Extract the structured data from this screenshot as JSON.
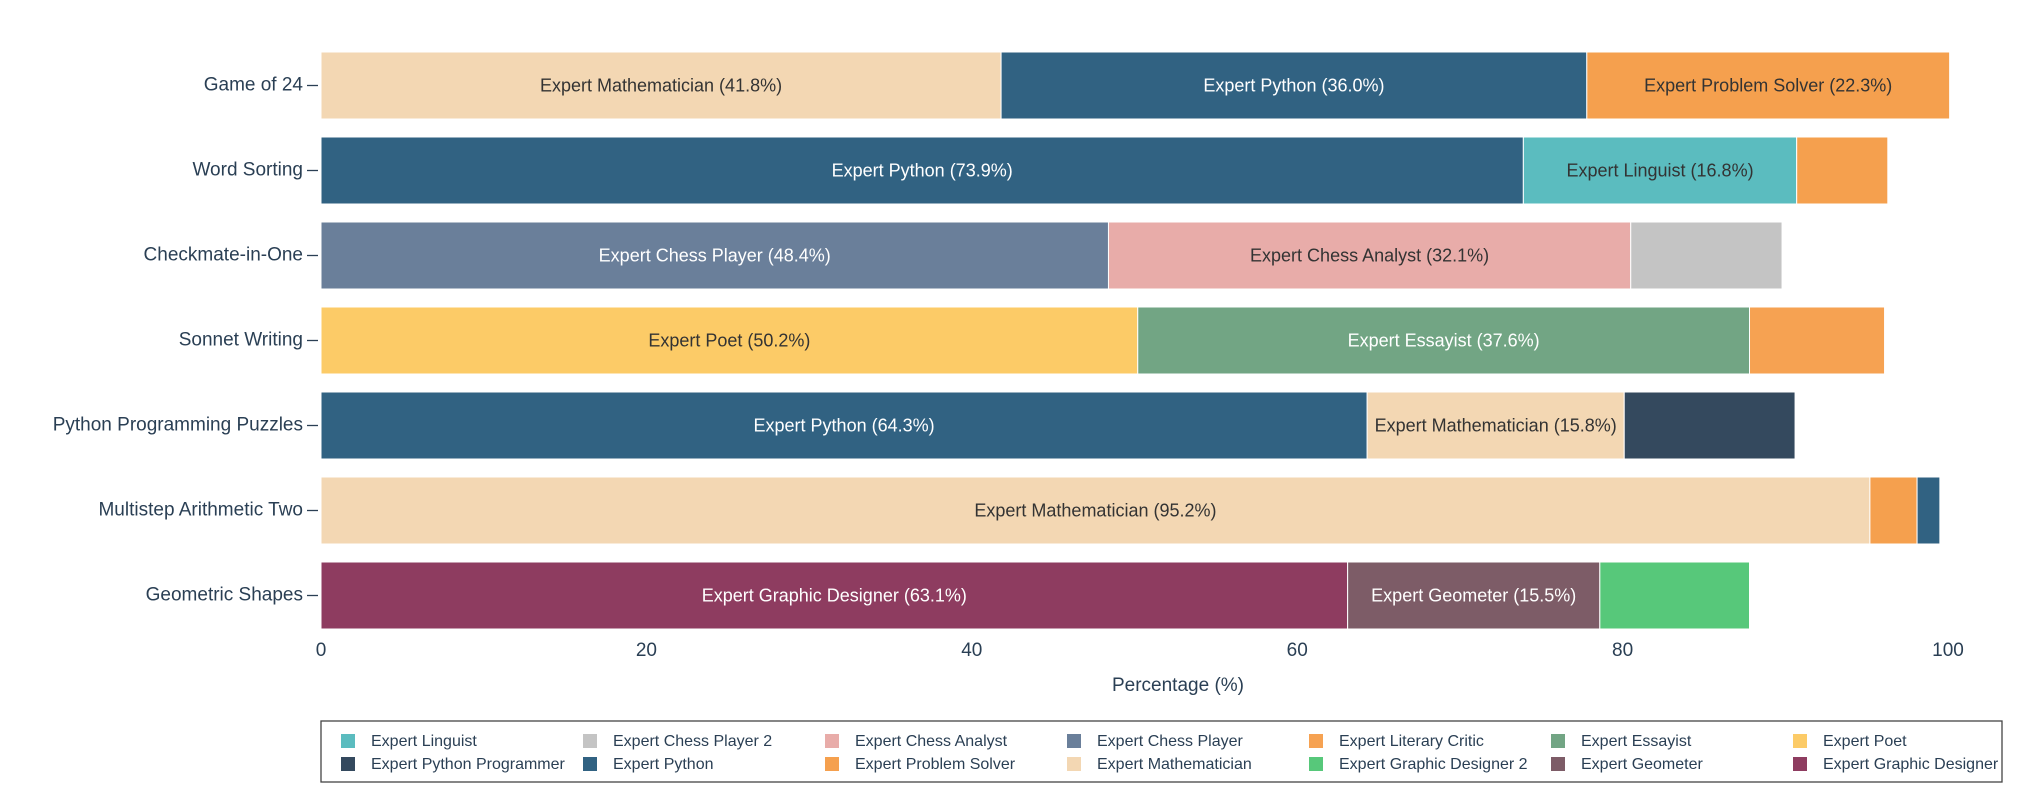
{
  "chart_data": {
    "type": "stacked_barh",
    "x_label": "Percentage (%)",
    "xlim": [
      0,
      100
    ],
    "xticks": [
      0,
      20,
      40,
      60,
      80,
      100
    ],
    "series": [
      {
        "name": "Expert Linguist",
        "color": "#5bbcbf"
      },
      {
        "name": "Expert Chess Player 2",
        "color": "#c4c4c4"
      },
      {
        "name": "Expert Chess Analyst",
        "color": "#e8aca9"
      },
      {
        "name": "Expert Chess Player",
        "color": "#6a7f9a"
      },
      {
        "name": "Expert Literary Critic",
        "color": "#f6a252"
      },
      {
        "name": "Expert Essayist",
        "color": "#72a584"
      },
      {
        "name": "Expert Poet",
        "color": "#fccb67"
      },
      {
        "name": "Expert Python Programmer",
        "color": "#34495e"
      },
      {
        "name": "Expert Python",
        "color": "#316282"
      },
      {
        "name": "Expert Problem Solver",
        "color": "#f5a04e"
      },
      {
        "name": "Expert Mathematician",
        "color": "#f3d7b3"
      },
      {
        "name": "Expert Graphic Designer 2",
        "color": "#57c87a"
      },
      {
        "name": "Expert Geometer",
        "color": "#7d5c67"
      },
      {
        "name": "Expert Graphic Designer",
        "color": "#8e3c60"
      }
    ],
    "bars": [
      {
        "category": "Game of 24",
        "segments": [
          {
            "name": "Expert Mathematician",
            "value": 41.8,
            "value_label": "Expert Mathematician (41.8%)"
          },
          {
            "name": "Expert Python",
            "value": 36.0,
            "value_label": "Expert Python (36.0%)"
          },
          {
            "name": "Expert Problem Solver",
            "value": 22.3,
            "value_label": "Expert Problem Solver (22.3%)"
          }
        ]
      },
      {
        "category": "Word Sorting",
        "segments": [
          {
            "name": "Expert Python",
            "value": 73.9,
            "value_label": "Expert Python (73.9%)"
          },
          {
            "name": "Expert Linguist",
            "value": 16.8,
            "value_label": "Expert Linguist (16.8%)"
          },
          {
            "name": "Expert Problem Solver",
            "value": 5.6
          }
        ]
      },
      {
        "category": "Checkmate-in-One",
        "segments": [
          {
            "name": "Expert Chess Player",
            "value": 48.4,
            "value_label": "Expert Chess Player (48.4%)"
          },
          {
            "name": "Expert Chess Analyst",
            "value": 32.1,
            "value_label": "Expert Chess Analyst (32.1%)"
          },
          {
            "name": "Expert Chess Player 2",
            "value": 9.3
          }
        ]
      },
      {
        "category": "Sonnet Writing",
        "segments": [
          {
            "name": "Expert Poet",
            "value": 50.2,
            "value_label": "Expert Poet (50.2%)"
          },
          {
            "name": "Expert Essayist",
            "value": 37.6,
            "value_label": "Expert Essayist (37.6%)"
          },
          {
            "name": "Expert Literary Critic",
            "value": 8.3
          }
        ]
      },
      {
        "category": "Python Programming Puzzles",
        "segments": [
          {
            "name": "Expert Python",
            "value": 64.3,
            "value_label": "Expert Python (64.3%)"
          },
          {
            "name": "Expert Mathematician",
            "value": 15.8,
            "value_label": "Expert Mathematician (15.8%)"
          },
          {
            "name": "Expert Python Programmer",
            "value": 10.5
          }
        ]
      },
      {
        "category": "Multistep Arithmetic Two",
        "segments": [
          {
            "name": "Expert Mathematician",
            "value": 95.2,
            "value_label": "Expert Mathematician (95.2%)"
          },
          {
            "name": "Expert Problem Solver",
            "value": 2.9
          },
          {
            "name": "Expert Python",
            "value": 1.4
          }
        ]
      },
      {
        "category": "Geometric Shapes",
        "segments": [
          {
            "name": "Expert Graphic Designer",
            "value": 63.1,
            "value_label": "Expert Graphic Designer (63.1%)"
          },
          {
            "name": "Expert Geometer",
            "value": 15.5,
            "value_label": "Expert Geometer (15.5%)"
          },
          {
            "name": "Expert Graphic Designer 2",
            "value": 9.2
          }
        ]
      }
    ]
  }
}
